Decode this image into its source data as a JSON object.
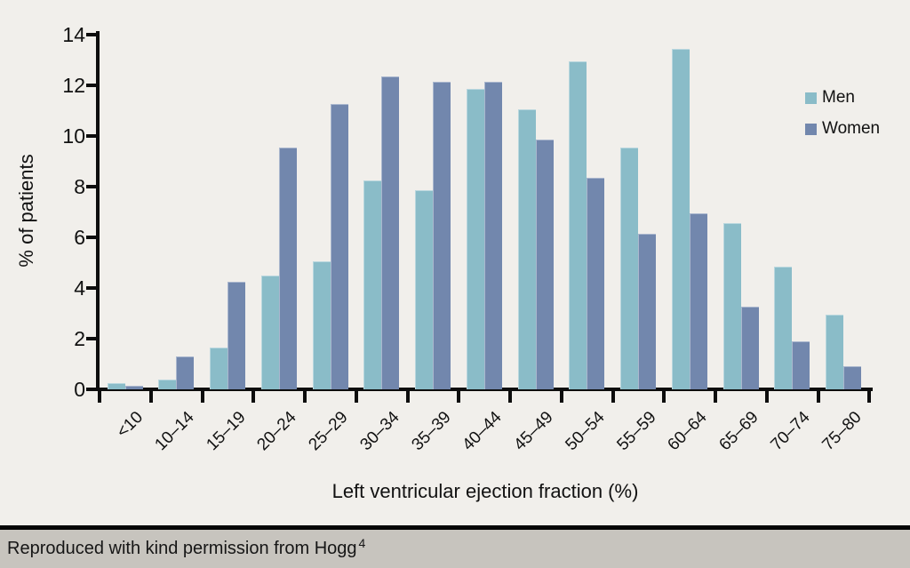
{
  "chart_data": {
    "type": "bar",
    "title": "",
    "categories": [
      "<10",
      "10–14",
      "15–19",
      "20–24",
      "25–29",
      "30–34",
      "35–39",
      "40–44",
      "45–49",
      "50–54",
      "55–59",
      "60–64",
      "65–69",
      "70–74",
      "75–80"
    ],
    "series": [
      {
        "name": "Men",
        "color": "#8abcc8",
        "values": [
          0.25,
          0.4,
          1.65,
          4.5,
          5.05,
          8.25,
          7.85,
          11.85,
          11.05,
          12.95,
          9.55,
          13.45,
          6.55,
          4.85,
          2.95
        ]
      },
      {
        "name": "Women",
        "color": "#7287ad",
        "values": [
          0.15,
          1.3,
          4.25,
          9.55,
          11.25,
          12.35,
          12.15,
          12.15,
          9.85,
          8.35,
          6.15,
          6.95,
          3.25,
          1.9,
          0.9
        ]
      }
    ],
    "xlabel": "Left ventricular ejection fraction (%)",
    "ylabel": "% of patients",
    "ylim": [
      0,
      14
    ],
    "yticks": [
      0,
      2,
      4,
      6,
      8,
      10,
      12,
      14
    ],
    "legend_position": "upper-right",
    "grid": false
  },
  "colors": {
    "background": "#f1efeb",
    "axis": "#0d0d0d",
    "caption_strip": "#c7c4be",
    "men": "#8abcc8",
    "women": "#7287ad"
  },
  "caption": {
    "text": "Reproduced with kind permission from Hogg",
    "superscript": "4"
  }
}
